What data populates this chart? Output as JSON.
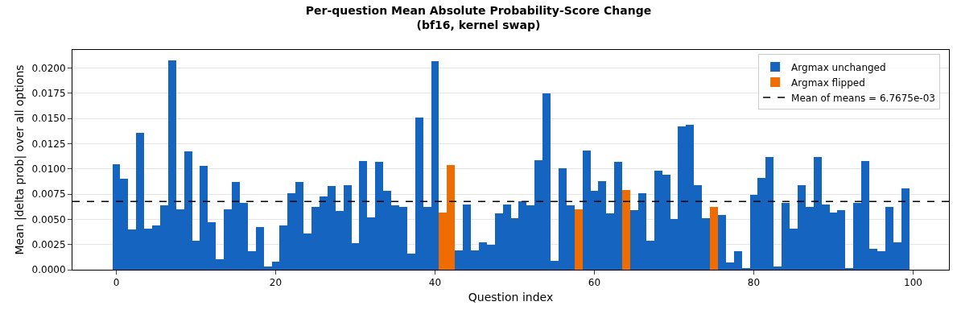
{
  "chart_data": {
    "type": "bar",
    "title": "Per-question Mean Absolute Probability-Score Change\n(bf16, kernel swap)",
    "xlabel": "Question index",
    "ylabel": "Mean |delta prob| over all options",
    "x": [
      0,
      1,
      2,
      3,
      4,
      5,
      6,
      7,
      8,
      9,
      10,
      11,
      12,
      13,
      14,
      15,
      16,
      17,
      18,
      19,
      20,
      21,
      22,
      23,
      24,
      25,
      26,
      27,
      28,
      29,
      30,
      31,
      32,
      33,
      34,
      35,
      36,
      37,
      38,
      39,
      40,
      41,
      42,
      43,
      44,
      45,
      46,
      47,
      48,
      49,
      50,
      51,
      52,
      53,
      54,
      55,
      56,
      57,
      58,
      59,
      60,
      61,
      62,
      63,
      64,
      65,
      66,
      67,
      68,
      69,
      70,
      71,
      72,
      73,
      74,
      75,
      76,
      77,
      78,
      79,
      80,
      81,
      82,
      83,
      84,
      85,
      86,
      87,
      88,
      89,
      90,
      91,
      92,
      93,
      94,
      95,
      96,
      97,
      98,
      99
    ],
    "series": [
      {
        "name": "Argmax unchanged",
        "color": "#1565c0",
        "values": [
          0.0105,
          0.009,
          0.004,
          0.0136,
          0.0041,
          0.0044,
          0.0064,
          0.0208,
          0.006,
          0.0117,
          0.0029,
          0.0103,
          0.0047,
          0.001,
          0.006,
          0.0087,
          0.0066,
          0.0018,
          0.0042,
          0.0003,
          0.0008,
          0.0044,
          0.0076,
          0.0087,
          0.0036,
          0.0062,
          0.0073,
          0.0083,
          0.0058,
          0.0084,
          0.0026,
          0.0108,
          0.0052,
          0.0107,
          0.0078,
          0.0064,
          0.0062,
          0.0016,
          0.0151,
          0.0062,
          0.0207,
          null,
          null,
          0.0019,
          0.0065,
          0.0019,
          0.0027,
          0.0025,
          0.0056,
          0.0065,
          0.0051,
          0.0068,
          0.0064,
          0.0109,
          0.0175,
          0.0009,
          0.0101,
          0.0064,
          null,
          0.0118,
          0.0078,
          0.0088,
          0.0056,
          0.0107,
          null,
          0.0059,
          0.0076,
          0.0029,
          0.0098,
          0.0094,
          0.005,
          0.0142,
          0.0144,
          0.0084,
          0.0051,
          null,
          0.0054,
          0.0007,
          0.0018,
          0.0001,
          0.0074,
          0.0091,
          0.0112,
          0.0003,
          0.0066,
          0.0041,
          0.0084,
          0.0062,
          0.0112,
          0.0065,
          0.0057,
          0.0059,
          0.0001,
          0.0066,
          0.0108,
          0.0021,
          0.0018,
          0.0062,
          0.0027,
          0.0081
        ]
      },
      {
        "name": "Argmax flipped",
        "color": "#ef6c00",
        "values": [
          null,
          null,
          null,
          null,
          null,
          null,
          null,
          null,
          null,
          null,
          null,
          null,
          null,
          null,
          null,
          null,
          null,
          null,
          null,
          null,
          null,
          null,
          null,
          null,
          null,
          null,
          null,
          null,
          null,
          null,
          null,
          null,
          null,
          null,
          null,
          null,
          null,
          null,
          null,
          null,
          null,
          0.0057,
          0.0104,
          null,
          null,
          null,
          null,
          null,
          null,
          null,
          null,
          null,
          null,
          null,
          null,
          null,
          null,
          null,
          0.006,
          null,
          null,
          null,
          null,
          null,
          0.0079,
          null,
          null,
          null,
          null,
          null,
          null,
          null,
          null,
          null,
          null,
          0.0062,
          null,
          null,
          null,
          null,
          null,
          null,
          null,
          null,
          null,
          null,
          null,
          null,
          null,
          null,
          null,
          null,
          null,
          null,
          null,
          null,
          null,
          null,
          null,
          null
        ]
      }
    ],
    "ref_lines": [
      {
        "axis": "y",
        "value": 0.0067675,
        "label": "Mean of means = 6.7675e-03",
        "color": "#000000",
        "line_style": "dashed"
      }
    ],
    "xlim": [
      -5.5,
      104.5
    ],
    "xticks": [
      0,
      20,
      40,
      60,
      80,
      100
    ],
    "ylim": [
      0,
      0.0218
    ],
    "yticks": [
      {
        "value": 0,
        "label": "0.0000"
      },
      {
        "value": 0.0025,
        "label": "0.0025"
      },
      {
        "value": 0.005,
        "label": "0.0050"
      },
      {
        "value": 0.0075,
        "label": "0.0075"
      },
      {
        "value": 0.01,
        "label": "0.0100"
      },
      {
        "value": 0.0125,
        "label": "0.0125"
      },
      {
        "value": 0.015,
        "label": "0.0150"
      },
      {
        "value": 0.0175,
        "label": "0.0175"
      },
      {
        "value": 0.02,
        "label": "0.0200"
      }
    ],
    "grid": "y",
    "legend": "top right"
  }
}
